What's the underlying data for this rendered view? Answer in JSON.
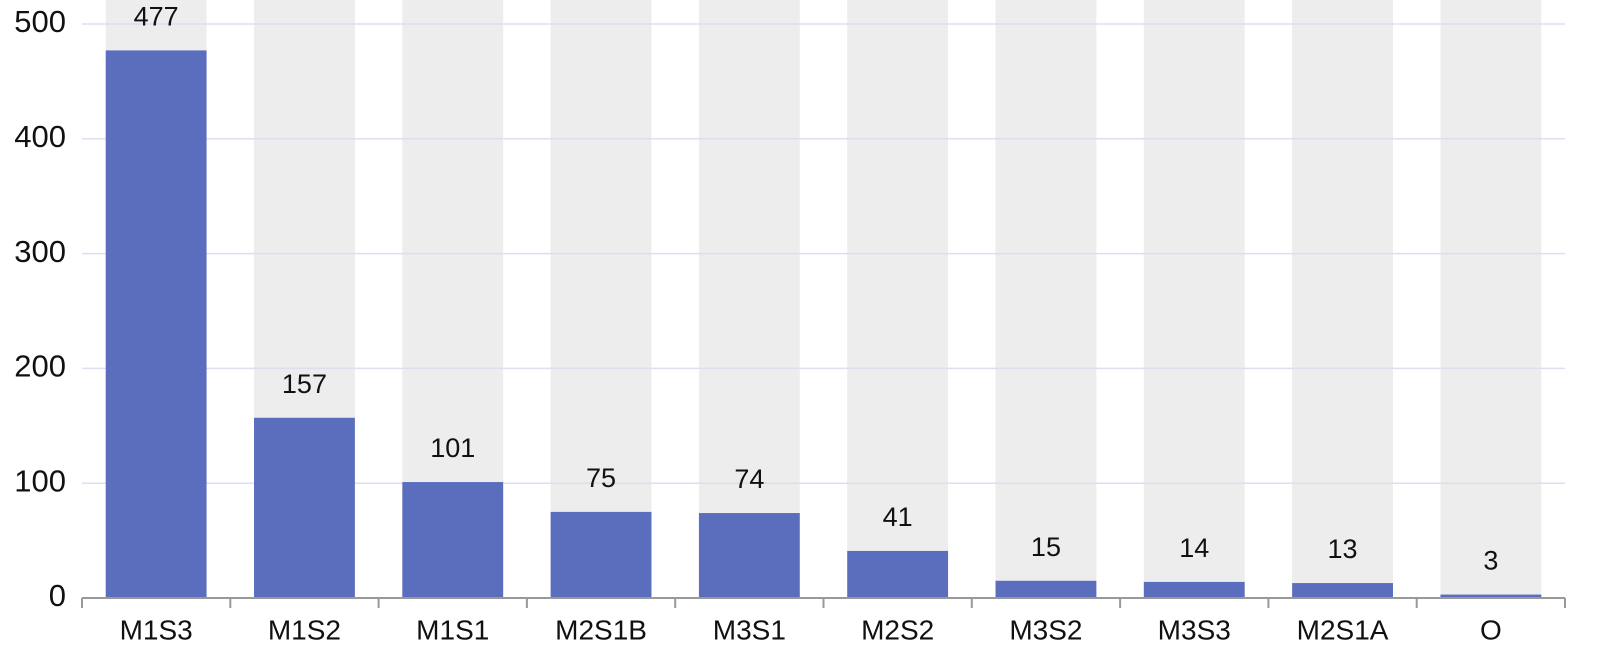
{
  "chart_data": {
    "type": "bar",
    "categories": [
      "M1S3",
      "M1S2",
      "M1S1",
      "M2S1B",
      "M3S1",
      "M2S2",
      "M3S2",
      "M3S3",
      "M2S1A",
      "O"
    ],
    "values": [
      477,
      157,
      101,
      75,
      74,
      41,
      15,
      14,
      13,
      3
    ],
    "color": "#5b6dbd",
    "ylim": [
      0,
      500
    ],
    "yticks": [
      0,
      100,
      200,
      300,
      400,
      500
    ],
    "grid": true
  }
}
